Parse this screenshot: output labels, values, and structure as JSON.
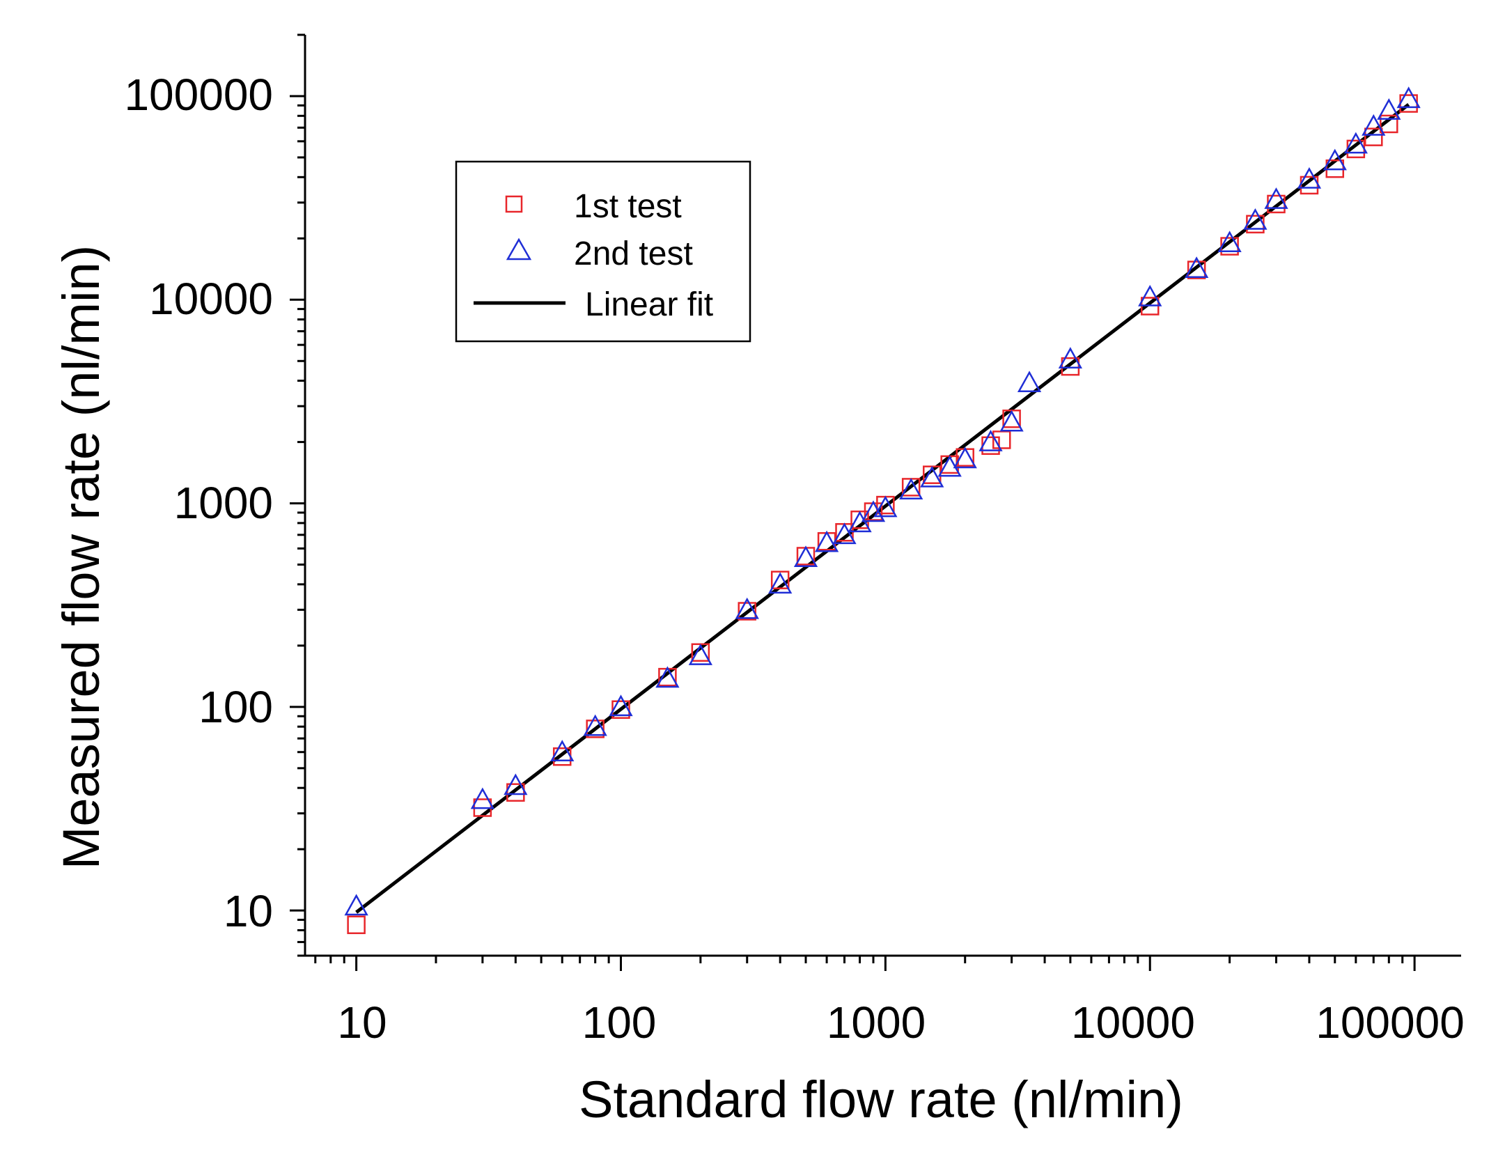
{
  "chart_data": {
    "type": "scatter",
    "title": "",
    "xlabel": "Standard flow rate (nl/min)",
    "ylabel": "Measured flow rate (nl/min)",
    "xscale": "log",
    "yscale": "log",
    "xlim": [
      6.4,
      150000
    ],
    "ylim": [
      6.0,
      200000
    ],
    "x_tick_labels": [
      "10",
      "100",
      "1000",
      "10000",
      "100000"
    ],
    "y_tick_labels": [
      "10",
      "100",
      "1000",
      "10000",
      "100000"
    ],
    "x_ticks": [
      10,
      100,
      1000,
      10000,
      100000
    ],
    "y_ticks": [
      10,
      100,
      1000,
      10000,
      100000
    ],
    "legend_position": "top-left",
    "series": [
      {
        "name": "1st test",
        "marker": "square",
        "color": "#e8262b",
        "points": [
          [
            10,
            8.5
          ],
          [
            30,
            32
          ],
          [
            40,
            38
          ],
          [
            60,
            57
          ],
          [
            80,
            78
          ],
          [
            100,
            97
          ],
          [
            150,
            140
          ],
          [
            200,
            185
          ],
          [
            300,
            295
          ],
          [
            400,
            420
          ],
          [
            500,
            550
          ],
          [
            600,
            650
          ],
          [
            700,
            720
          ],
          [
            800,
            830
          ],
          [
            900,
            910
          ],
          [
            1000,
            980
          ],
          [
            1250,
            1200
          ],
          [
            1500,
            1380
          ],
          [
            1750,
            1550
          ],
          [
            2000,
            1680
          ],
          [
            2500,
            1920
          ],
          [
            2750,
            2050
          ],
          [
            3000,
            2600
          ],
          [
            5000,
            4700
          ],
          [
            10000,
            9300
          ],
          [
            15000,
            14000
          ],
          [
            20000,
            18300
          ],
          [
            25000,
            23500
          ],
          [
            30000,
            29500
          ],
          [
            40000,
            36500
          ],
          [
            50000,
            44000
          ],
          [
            60000,
            55000
          ],
          [
            70000,
            63000
          ],
          [
            80000,
            73000
          ],
          [
            95000,
            92000
          ]
        ]
      },
      {
        "name": "2nd test",
        "marker": "triangle",
        "color": "#1f2ed6",
        "points": [
          [
            10,
            10.5
          ],
          [
            30,
            35
          ],
          [
            40,
            41
          ],
          [
            60,
            60
          ],
          [
            80,
            80
          ],
          [
            100,
            100
          ],
          [
            150,
            138
          ],
          [
            200,
            178
          ],
          [
            300,
            300
          ],
          [
            400,
            400
          ],
          [
            500,
            540
          ],
          [
            600,
            640
          ],
          [
            700,
            700
          ],
          [
            800,
            800
          ],
          [
            900,
            900
          ],
          [
            1000,
            950
          ],
          [
            1250,
            1160
          ],
          [
            1500,
            1330
          ],
          [
            1750,
            1500
          ],
          [
            2000,
            1650
          ],
          [
            2500,
            2000
          ],
          [
            3000,
            2500
          ],
          [
            3500,
            3900
          ],
          [
            5000,
            5100
          ],
          [
            10000,
            10300
          ],
          [
            15000,
            14200
          ],
          [
            20000,
            19000
          ],
          [
            25000,
            24500
          ],
          [
            30000,
            31000
          ],
          [
            40000,
            39000
          ],
          [
            50000,
            48000
          ],
          [
            60000,
            58000
          ],
          [
            70000,
            71000
          ],
          [
            80000,
            85000
          ],
          [
            95000,
            97000
          ]
        ]
      },
      {
        "name": "Linear fit",
        "line": "solid",
        "color": "#000000",
        "points": [
          [
            10,
            9.8
          ],
          [
            95000,
            91000
          ]
        ]
      }
    ]
  }
}
